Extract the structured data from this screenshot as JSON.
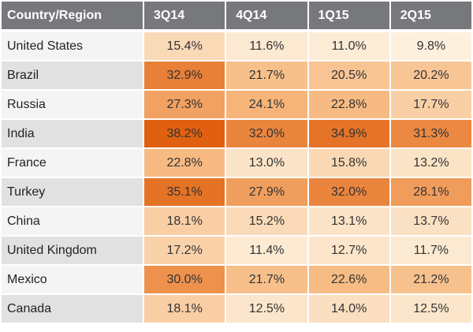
{
  "chart_data": {
    "type": "table",
    "columns": [
      "Country/Region",
      "3Q14",
      "4Q14",
      "1Q15",
      "2Q15"
    ],
    "rows": [
      {
        "label": "United States",
        "values": [
          "15.4%",
          "11.6%",
          "11.0%",
          "9.8%"
        ]
      },
      {
        "label": "Brazil",
        "values": [
          "32.9%",
          "21.7%",
          "20.5%",
          "20.2%"
        ]
      },
      {
        "label": "Russia",
        "values": [
          "27.3%",
          "24.1%",
          "22.8%",
          "17.7%"
        ]
      },
      {
        "label": "India",
        "values": [
          "38.2%",
          "32.0%",
          "34.9%",
          "31.3%"
        ]
      },
      {
        "label": "France",
        "values": [
          "22.8%",
          "13.0%",
          "15.8%",
          "13.2%"
        ]
      },
      {
        "label": "Turkey",
        "values": [
          "35.1%",
          "27.9%",
          "32.0%",
          "28.1%"
        ]
      },
      {
        "label": "China",
        "values": [
          "18.1%",
          "15.2%",
          "13.1%",
          "13.7%"
        ]
      },
      {
        "label": "United Kingdom",
        "values": [
          "17.2%",
          "11.4%",
          "12.7%",
          "11.7%"
        ]
      },
      {
        "label": "Mexico",
        "values": [
          "30.0%",
          "21.7%",
          "22.6%",
          "21.2%"
        ]
      },
      {
        "label": "Canada",
        "values": [
          "18.1%",
          "12.5%",
          "14.0%",
          "12.5%"
        ]
      }
    ],
    "color_scale": {
      "low": "#fdf1de",
      "mid": "#f6b57a",
      "high": "#e0600f"
    }
  }
}
